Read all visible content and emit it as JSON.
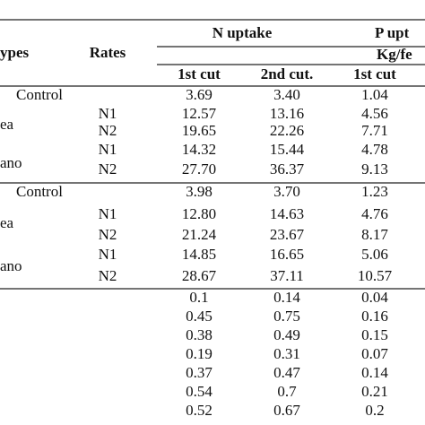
{
  "header": {
    "types": "ypes",
    "rates": "Rates",
    "n_uptake": "N uptake",
    "p_uptake": "P upt",
    "unit": "Kg/fe",
    "cols": [
      "1st cut",
      "2nd cut.",
      "1st cut"
    ]
  },
  "blocks": [
    {
      "control": {
        "label": "Control",
        "values": [
          "3.69",
          "3.40",
          "1.04"
        ]
      },
      "groups": [
        {
          "label": "ea",
          "rows": [
            {
              "rate": "N1",
              "values": [
                "12.57",
                "13.16",
                "4.56"
              ]
            },
            {
              "rate": "N2",
              "values": [
                "19.65",
                "22.26",
                "7.71"
              ]
            }
          ]
        },
        {
          "label": "ano",
          "rows": [
            {
              "rate": "N1",
              "values": [
                "14.32",
                "15.44",
                "4.78"
              ]
            },
            {
              "rate": "N2",
              "values": [
                "27.70",
                "36.37",
                "9.13"
              ]
            }
          ]
        }
      ]
    },
    {
      "control": {
        "label": "Control",
        "values": [
          "3.98",
          "3.70",
          "1.23"
        ]
      },
      "groups": [
        {
          "label": "ea",
          "rows": [
            {
              "rate": "N1",
              "values": [
                "12.80",
                "14.63",
                "4.76"
              ]
            },
            {
              "rate": "N2",
              "values": [
                "21.24",
                "23.67",
                "8.17"
              ]
            }
          ]
        },
        {
          "label": "ano",
          "rows": [
            {
              "rate": "N1",
              "values": [
                "14.85",
                "16.65",
                "5.06"
              ]
            },
            {
              "rate": "N2",
              "values": [
                "28.67",
                "37.11",
                "10.57"
              ]
            }
          ]
        }
      ]
    }
  ],
  "lsd_rows": [
    [
      "0.1",
      "0.14",
      "0.04"
    ],
    [
      "0.45",
      "0.75",
      "0.16"
    ],
    [
      "0.38",
      "0.49",
      "0.15"
    ],
    [
      "0.19",
      "0.31",
      "0.07"
    ],
    [
      "0.37",
      "0.47",
      "0.14"
    ],
    [
      "0.54",
      "0.7",
      "0.21"
    ],
    [
      "0.52",
      "0.67",
      "0.2"
    ]
  ]
}
